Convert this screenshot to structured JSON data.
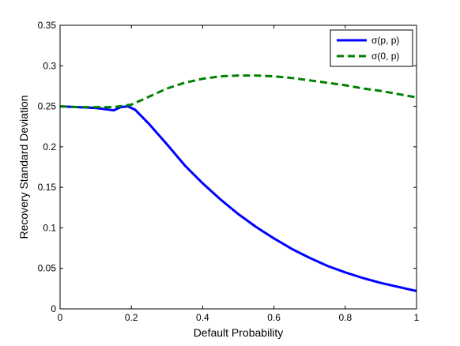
{
  "chart_data": {
    "type": "line",
    "title": "",
    "xlabel": "Default Probability",
    "ylabel": "Recovery Standard Deviation",
    "xlim": [
      0,
      1
    ],
    "ylim": [
      0,
      0.35
    ],
    "xticks": [
      0,
      0.2,
      0.4,
      0.6,
      0.8,
      1
    ],
    "xtick_labels": [
      "0",
      "0.2",
      "0.4",
      "0.6",
      "0.8",
      "1"
    ],
    "yticks": [
      0,
      0.05,
      0.1,
      0.15,
      0.2,
      0.25,
      0.3,
      0.35
    ],
    "ytick_labels": [
      "0",
      "0.05",
      "0.1",
      "0.15",
      "0.2",
      "0.25",
      "0.3",
      "0.35"
    ],
    "grid": false,
    "legend_position": "top-right",
    "series": [
      {
        "name": "σ(p, p)",
        "color": "#0000ff",
        "style": "solid",
        "x": [
          0,
          0.05,
          0.1,
          0.15,
          0.17,
          0.19,
          0.21,
          0.25,
          0.3,
          0.35,
          0.4,
          0.45,
          0.5,
          0.55,
          0.6,
          0.65,
          0.7,
          0.75,
          0.8,
          0.85,
          0.9,
          0.95,
          1.0
        ],
        "y": [
          0.25,
          0.249,
          0.248,
          0.245,
          0.249,
          0.25,
          0.246,
          0.228,
          0.203,
          0.177,
          0.155,
          0.135,
          0.117,
          0.101,
          0.087,
          0.074,
          0.063,
          0.053,
          0.045,
          0.038,
          0.032,
          0.027,
          0.022
        ]
      },
      {
        "name": "σ(0, p)",
        "color": "#008000",
        "style": "dashed",
        "x": [
          0,
          0.05,
          0.1,
          0.15,
          0.2,
          0.25,
          0.3,
          0.35,
          0.4,
          0.45,
          0.5,
          0.55,
          0.6,
          0.65,
          0.7,
          0.75,
          0.8,
          0.85,
          0.9,
          0.95,
          1.0
        ],
        "y": [
          0.25,
          0.249,
          0.249,
          0.249,
          0.252,
          0.262,
          0.272,
          0.279,
          0.284,
          0.287,
          0.288,
          0.288,
          0.287,
          0.285,
          0.282,
          0.279,
          0.276,
          0.272,
          0.269,
          0.265,
          0.261
        ]
      }
    ]
  }
}
